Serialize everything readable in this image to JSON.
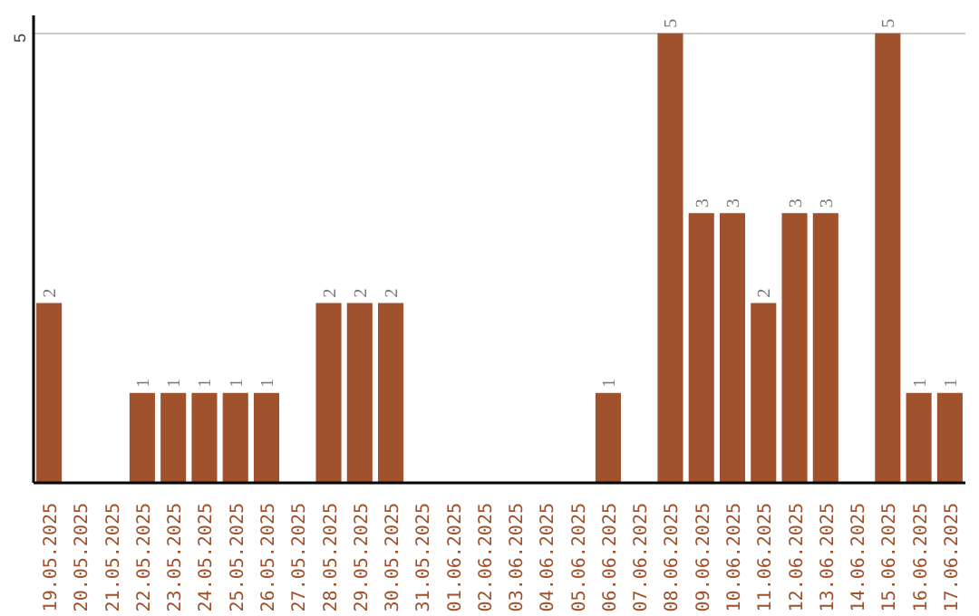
{
  "chart_data": {
    "type": "bar",
    "categories": [
      "19.05.2025",
      "20.05.2025",
      "21.05.2025",
      "22.05.2025",
      "23.05.2025",
      "24.05.2025",
      "25.05.2025",
      "26.05.2025",
      "27.05.2025",
      "28.05.2025",
      "29.05.2025",
      "30.05.2025",
      "31.05.2025",
      "01.06.2025",
      "02.06.2025",
      "03.06.2025",
      "04.06.2025",
      "05.06.2025",
      "06.06.2025",
      "07.06.2025",
      "08.06.2025",
      "09.06.2025",
      "10.06.2025",
      "11.06.2025",
      "12.06.2025",
      "13.06.2025",
      "14.06.2025",
      "15.06.2025",
      "16.06.2025",
      "17.06.2025"
    ],
    "values": [
      2,
      0,
      0,
      1,
      1,
      1,
      1,
      1,
      0,
      2,
      2,
      2,
      0,
      0,
      0,
      0,
      0,
      0,
      1,
      0,
      5,
      3,
      3,
      2,
      3,
      3,
      0,
      5,
      1,
      1
    ],
    "value_labels": [
      "2",
      null,
      null,
      "1",
      "1",
      "1",
      "1",
      "1",
      null,
      "2",
      "2",
      "2",
      null,
      null,
      null,
      null,
      null,
      null,
      "1",
      null,
      "5",
      "3",
      "3",
      "2",
      "3",
      "3",
      null,
      "5",
      "1",
      "1"
    ],
    "color": "#a0522d",
    "ylim": [
      0,
      5.2
    ],
    "yticks": [
      5
    ],
    "grid": "y"
  }
}
